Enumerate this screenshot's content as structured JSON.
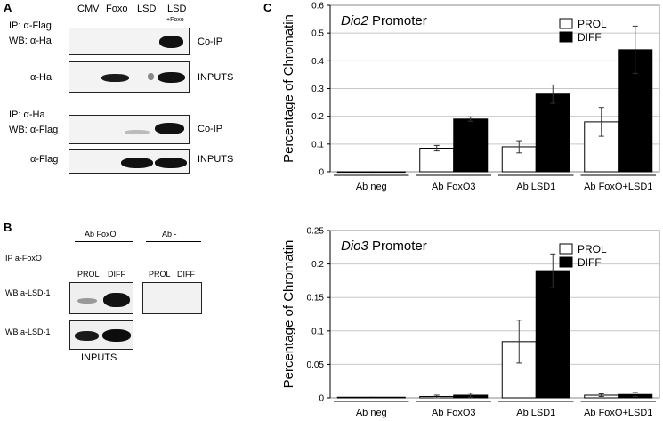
{
  "panel_a": {
    "letter": "A",
    "lanes": [
      "CMV",
      "Foxo",
      "LSD",
      "LSD",
      "+Foxo"
    ],
    "ip1": "IP:  α-Flag",
    "wb1": "WB:  α-Ha",
    "coip1": "Co-IP",
    "ha_label": "α-Ha",
    "inputs1": "INPUTS",
    "ip2": "IP:  α-Ha",
    "wb2": "WB:  α-Flag",
    "coip2": "Co-IP",
    "flag_label": "α-Flag",
    "inputs2": "INPUTS"
  },
  "panel_b": {
    "letter": "B",
    "ab_foxo": "Ab  FoxO",
    "ab_minus": "Ab  -",
    "ip": "IP a-FoxO",
    "prol1": "PROL",
    "diff1": "DIFF",
    "prol2": "PROL",
    "diff2": "DIFF",
    "wb1": "WB a-LSD-1",
    "wb2": "WB a-LSD-1",
    "inputs": "INPUTS"
  },
  "panel_c": {
    "letter": "C"
  },
  "chart_data": [
    {
      "type": "bar",
      "title": "Dio2 Promoter",
      "title_italic": "Dio2",
      "title_rest": " Promoter",
      "ylabel": "Percentage of Chromatin",
      "categories": [
        "Ab neg",
        "Ab FoxO3",
        "Ab LSD1",
        "Ab FoxO+LSD1"
      ],
      "ylim": [
        0,
        0.6
      ],
      "yticks": [
        "0",
        "0.1",
        "0.2",
        "0.3",
        "0.4",
        "0.5",
        "0.6"
      ],
      "grid": true,
      "legend_position": "top-right",
      "series": [
        {
          "name": "PROL",
          "color": "#ffffff",
          "values": [
            0,
            0.085,
            0.09,
            0.18
          ],
          "errors": [
            0,
            0.01,
            0.022,
            0.052
          ]
        },
        {
          "name": "DIFF",
          "color": "#000000",
          "values": [
            0,
            0.19,
            0.28,
            0.44
          ],
          "errors": [
            0,
            0.008,
            0.033,
            0.085
          ]
        }
      ]
    },
    {
      "type": "bar",
      "title": "Dio3 Promoter",
      "title_italic": "Dio3",
      "title_rest": " Promoter",
      "ylabel": "Percentage of Chromatin",
      "categories": [
        "Ab neg",
        "Ab FoxO3",
        "Ab LSD1",
        "Ab FoxO+LSD1"
      ],
      "ylim": [
        0,
        0.25
      ],
      "yticks": [
        "0",
        "0.05",
        "0.1",
        "0.15",
        "0.2",
        "0.25"
      ],
      "grid": true,
      "legend_position": "top-right",
      "series": [
        {
          "name": "PROL",
          "color": "#ffffff",
          "values": [
            0.001,
            0.002,
            0.084,
            0.004
          ],
          "errors": [
            0,
            0.002,
            0.032,
            0.002
          ]
        },
        {
          "name": "DIFF",
          "color": "#000000",
          "values": [
            0.001,
            0.004,
            0.19,
            0.005
          ],
          "errors": [
            0,
            0.003,
            0.025,
            0.003
          ]
        }
      ]
    }
  ]
}
